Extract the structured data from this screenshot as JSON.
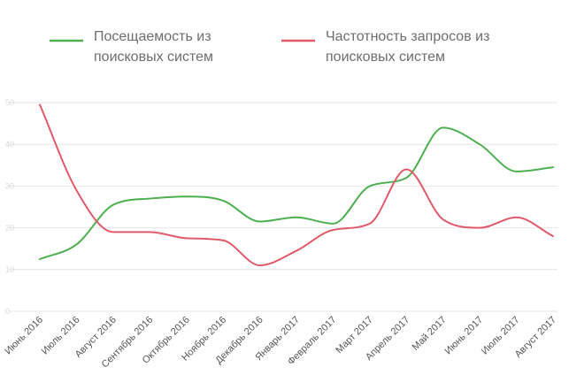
{
  "chart_data": {
    "type": "line",
    "categories": [
      "Июнь 2016",
      "Июль 2016",
      "Август 2016",
      "Сентябрь 2016",
      "Октябрь 2016",
      "Ноябрь 2016",
      "Декабрь 2016",
      "Январь 2017",
      "Февраль 2017",
      "Март 2017",
      "Апрель 2017",
      "Май 2017",
      "Июнь 2017",
      "Июль 2017",
      "Август 2017"
    ],
    "series": [
      {
        "name": "Посещаемость из поисковых систем",
        "name_lines": [
          "Посещаемость из",
          "поисковых систем"
        ],
        "color": "#4caf50",
        "values": [
          12.5,
          16,
          25.5,
          27,
          27.5,
          26.5,
          21.5,
          22.5,
          21,
          30,
          32,
          44,
          40,
          33.5,
          34.5
        ]
      },
      {
        "name": "Частотность запросов из поисковых систем",
        "name_lines": [
          "Частотность запросов из",
          "поисковых систем"
        ],
        "color": "#e05a6a",
        "values": [
          49.5,
          29,
          19,
          19,
          17.5,
          17,
          11,
          14.5,
          19.5,
          21,
          34,
          22,
          20,
          22.5,
          18
        ]
      }
    ],
    "ylim": [
      0,
      50
    ],
    "y_gridlines": [
      0,
      10,
      20,
      30,
      40,
      50
    ],
    "grid": true,
    "legend_position": "top"
  }
}
